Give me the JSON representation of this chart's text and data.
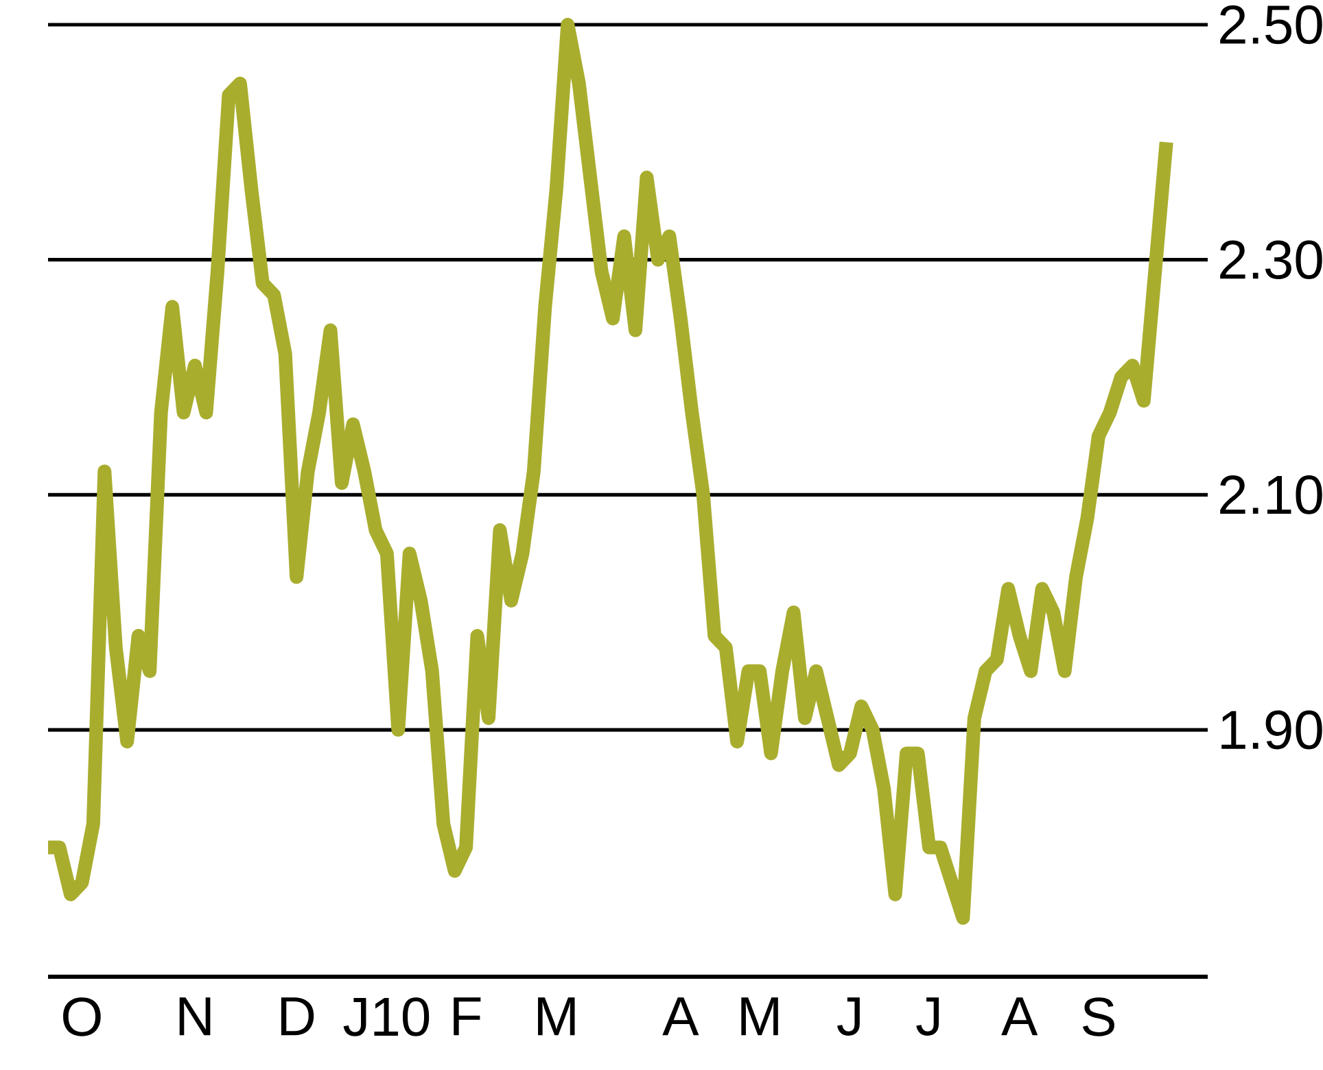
{
  "chart_data": {
    "type": "line",
    "color": "#a9ad2e",
    "line_style": "solid",
    "marker": "none",
    "grid": "y",
    "ylim": [
      1.69,
      2.5
    ],
    "yticks": [
      {
        "value": 1.9,
        "label": "1.90"
      },
      {
        "value": 2.1,
        "label": "2.10"
      },
      {
        "value": 2.3,
        "label": "2.30"
      },
      {
        "value": 2.5,
        "label": "2.50"
      }
    ],
    "categories": [
      null,
      null,
      null,
      "O",
      null,
      null,
      null,
      null,
      null,
      null,
      null,
      null,
      null,
      "N",
      null,
      null,
      null,
      null,
      null,
      null,
      null,
      null,
      "D",
      null,
      null,
      null,
      null,
      null,
      null,
      null,
      "J10",
      null,
      null,
      null,
      null,
      null,
      null,
      "F",
      null,
      null,
      null,
      null,
      null,
      null,
      null,
      "M",
      null,
      null,
      null,
      null,
      null,
      null,
      null,
      null,
      null,
      null,
      "A",
      null,
      null,
      null,
      null,
      null,
      null,
      "M",
      null,
      null,
      null,
      null,
      null,
      null,
      null,
      "J",
      null,
      null,
      null,
      null,
      null,
      null,
      "J",
      null,
      null,
      null,
      null,
      null,
      null,
      null,
      "A",
      null,
      null,
      null,
      null,
      null,
      null,
      "S",
      null,
      null,
      null,
      null,
      null,
      null
    ],
    "values": [
      1.8,
      1.8,
      1.76,
      1.77,
      1.82,
      2.12,
      1.97,
      1.89,
      1.98,
      1.95,
      2.17,
      2.26,
      2.17,
      2.21,
      2.17,
      2.29,
      2.44,
      2.45,
      2.36,
      2.28,
      2.27,
      2.22,
      2.03,
      2.12,
      2.17,
      2.24,
      2.11,
      2.16,
      2.12,
      2.07,
      2.05,
      1.9,
      2.05,
      2.01,
      1.95,
      1.82,
      1.78,
      1.8,
      1.98,
      1.91,
      2.07,
      2.01,
      2.05,
      2.12,
      2.26,
      2.36,
      2.5,
      2.45,
      2.37,
      2.29,
      2.25,
      2.32,
      2.24,
      2.37,
      2.3,
      2.32,
      2.25,
      2.17,
      2.1,
      1.98,
      1.97,
      1.89,
      1.95,
      1.95,
      1.88,
      1.95,
      2.0,
      1.91,
      1.95,
      1.91,
      1.87,
      1.88,
      1.92,
      1.9,
      1.85,
      1.76,
      1.88,
      1.88,
      1.8,
      1.8,
      1.77,
      1.74,
      1.91,
      1.95,
      1.96,
      2.02,
      1.98,
      1.95,
      2.02,
      2.0,
      1.95,
      2.03,
      2.08,
      2.15,
      2.17,
      2.2,
      2.21,
      2.18,
      2.29,
      2.4
    ]
  }
}
